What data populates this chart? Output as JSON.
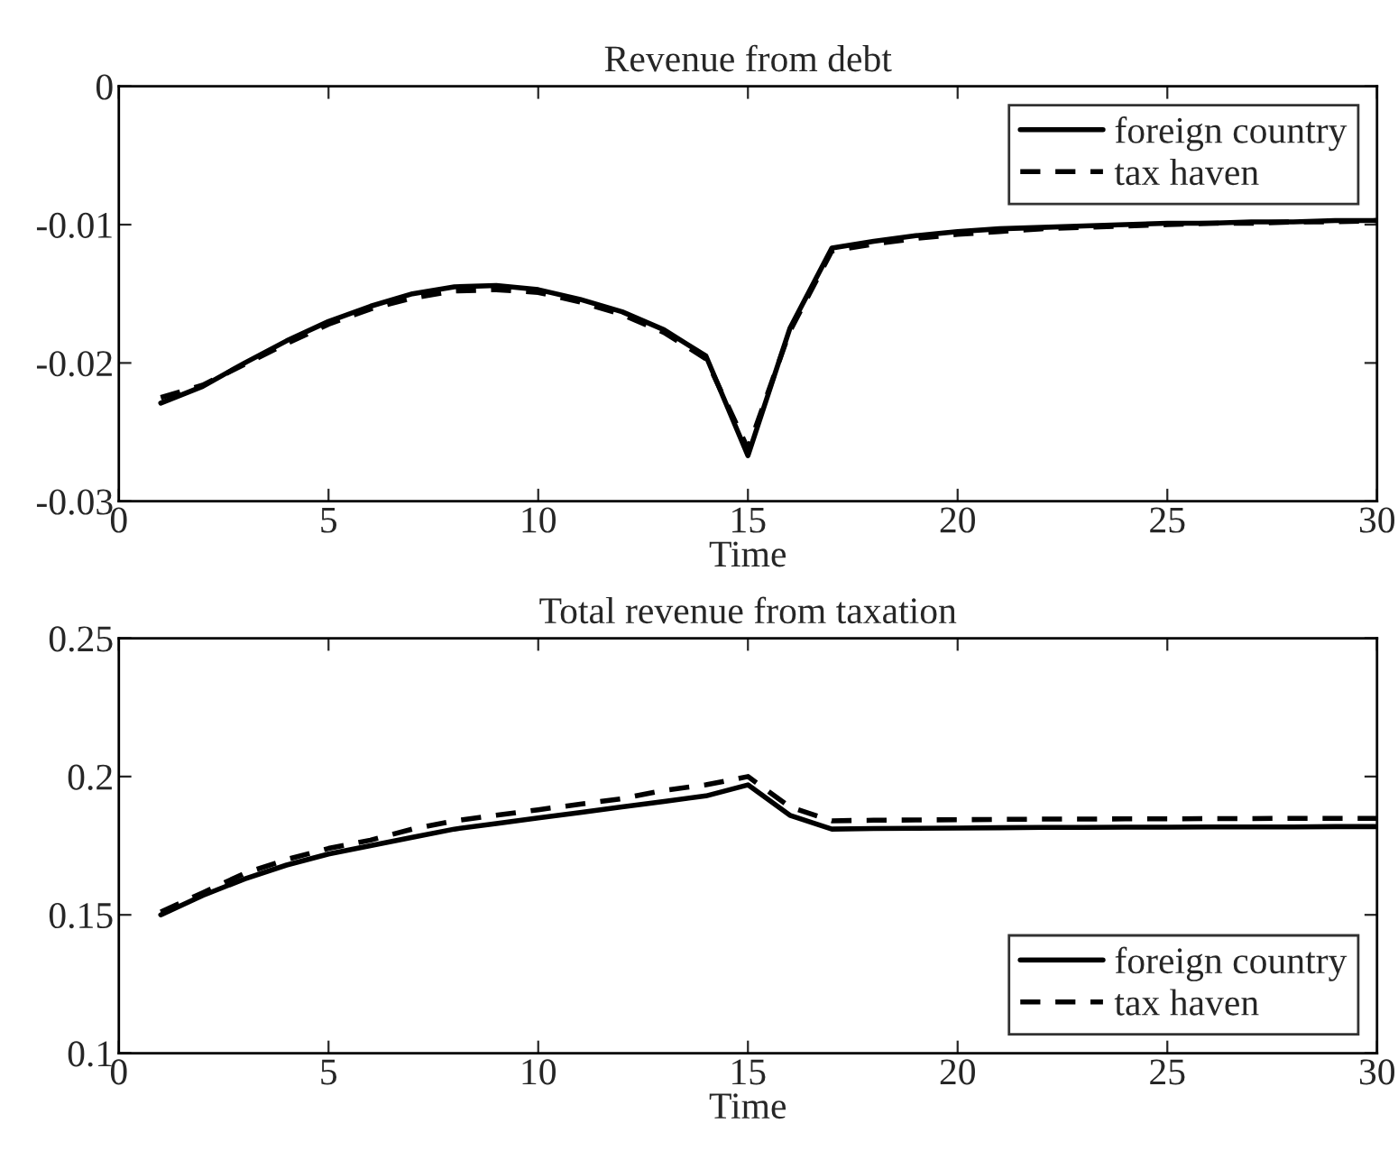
{
  "chart_data": [
    {
      "type": "line",
      "title": "Revenue from debt",
      "xlabel": "Time",
      "xlim": [
        0,
        30
      ],
      "xticks": [
        0,
        5,
        10,
        15,
        20,
        25,
        30
      ],
      "ylim": [
        -0.03,
        0
      ],
      "yticks": [
        -0.03,
        -0.02,
        -0.01,
        0
      ],
      "grid": false,
      "legend": "top right",
      "x": [
        1,
        2,
        3,
        4,
        5,
        6,
        7,
        8,
        9,
        10,
        11,
        12,
        13,
        14,
        15,
        16,
        17,
        18,
        19,
        20,
        21,
        22,
        23,
        24,
        25,
        26,
        27,
        28,
        29,
        30
      ],
      "series": [
        {
          "name": "foreign country",
          "color": "#000000",
          "line_style": "solid",
          "values": [
            -0.0229,
            -0.0217,
            -0.02,
            -0.0184,
            -0.017,
            -0.0159,
            -0.015,
            -0.0145,
            -0.0144,
            -0.0147,
            -0.0154,
            -0.0163,
            -0.0176,
            -0.0195,
            -0.0267,
            -0.0175,
            -0.0117,
            -0.0112,
            -0.0108,
            -0.0105,
            -0.0103,
            -0.0102,
            -0.0101,
            -0.01,
            -0.0099,
            -0.0099,
            -0.0098,
            -0.0098,
            -0.0097,
            -0.0097
          ]
        },
        {
          "name": "tax haven",
          "color": "#000000",
          "line_style": "dashed",
          "values": [
            -0.0225,
            -0.0216,
            -0.0201,
            -0.0186,
            -0.0172,
            -0.0161,
            -0.0153,
            -0.0148,
            -0.0147,
            -0.0149,
            -0.0156,
            -0.0165,
            -0.0178,
            -0.0197,
            -0.0262,
            -0.0177,
            -0.0119,
            -0.0114,
            -0.011,
            -0.0107,
            -0.0105,
            -0.0103,
            -0.0102,
            -0.0101,
            -0.01,
            -0.0099,
            -0.0099,
            -0.0098,
            -0.0098,
            -0.0097
          ]
        }
      ]
    },
    {
      "type": "line",
      "title": "Total revenue from taxation",
      "xlabel": "Time",
      "xlim": [
        0,
        30
      ],
      "xticks": [
        0,
        5,
        10,
        15,
        20,
        25,
        30
      ],
      "ylim": [
        0.1,
        0.25
      ],
      "yticks": [
        0.1,
        0.15,
        0.2,
        0.25
      ],
      "grid": false,
      "legend": "bottom right",
      "x": [
        1,
        2,
        3,
        4,
        5,
        6,
        7,
        8,
        9,
        10,
        11,
        12,
        13,
        14,
        15,
        16,
        17,
        18,
        19,
        20,
        21,
        22,
        23,
        24,
        25,
        26,
        27,
        28,
        29,
        30
      ],
      "series": [
        {
          "name": "foreign country",
          "color": "#000000",
          "line_style": "solid",
          "values": [
            0.15,
            0.157,
            0.163,
            0.168,
            0.172,
            0.175,
            0.178,
            0.181,
            0.183,
            0.185,
            0.187,
            0.189,
            0.191,
            0.193,
            0.197,
            0.186,
            0.181,
            0.1812,
            0.1813,
            0.1814,
            0.1815,
            0.1816,
            0.1816,
            0.1817,
            0.1817,
            0.1818,
            0.1818,
            0.1818,
            0.1819,
            0.1819
          ]
        },
        {
          "name": "tax haven",
          "color": "#000000",
          "line_style": "dashed",
          "values": [
            0.151,
            0.158,
            0.165,
            0.17,
            0.174,
            0.177,
            0.181,
            0.184,
            0.186,
            0.188,
            0.19,
            0.192,
            0.195,
            0.197,
            0.2,
            0.189,
            0.184,
            0.1842,
            0.1843,
            0.1844,
            0.1845,
            0.1846,
            0.1846,
            0.1847,
            0.1847,
            0.1848,
            0.1848,
            0.1849,
            0.1849,
            0.1849
          ]
        }
      ]
    }
  ]
}
